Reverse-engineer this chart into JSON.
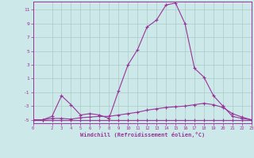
{
  "xlabel": "Windchill (Refroidissement éolien,°C)",
  "background_color": "#cce8e8",
  "grid_color": "#aacccc",
  "line_color": "#993399",
  "xlim": [
    0,
    23
  ],
  "ylim": [
    -5.5,
    12.2
  ],
  "yticks": [
    -5,
    -3,
    -1,
    1,
    3,
    5,
    7,
    9,
    11
  ],
  "xticks": [
    0,
    2,
    3,
    4,
    5,
    6,
    7,
    8,
    9,
    10,
    11,
    12,
    13,
    14,
    15,
    16,
    17,
    18,
    19,
    20,
    21,
    22,
    23
  ],
  "series1_x": [
    0,
    1,
    2,
    3,
    4,
    5,
    6,
    7,
    8,
    9,
    10,
    11,
    12,
    13,
    14,
    15,
    16,
    17,
    18,
    19,
    20,
    21,
    22,
    23
  ],
  "series1_y": [
    -5,
    -5,
    -5,
    -5,
    -5,
    -5,
    -5,
    -5,
    -5,
    -5,
    -5,
    -5,
    -5,
    -5,
    -5,
    -5,
    -5,
    -5,
    -5,
    -5,
    -5,
    -5,
    -5,
    -5
  ],
  "series2_x": [
    0,
    1,
    2,
    3,
    4,
    5,
    6,
    7,
    8,
    9,
    10,
    11,
    12,
    13,
    14,
    15,
    16,
    17,
    18,
    19,
    20,
    21,
    22,
    23
  ],
  "series2_y": [
    -5,
    -5,
    -4.8,
    -4.8,
    -4.9,
    -4.7,
    -4.6,
    -4.5,
    -4.5,
    -4.3,
    -4.1,
    -3.9,
    -3.6,
    -3.4,
    -3.2,
    -3.1,
    -3.0,
    -2.8,
    -2.6,
    -2.8,
    -3.2,
    -4.1,
    -4.6,
    -5.0
  ],
  "series3_x": [
    0,
    1,
    2,
    3,
    4,
    5,
    6,
    7,
    8,
    9,
    10,
    11,
    12,
    13,
    14,
    15,
    16,
    17,
    18,
    19,
    20,
    21,
    22,
    23
  ],
  "series3_y": [
    -5,
    -5,
    -4.5,
    -1.5,
    -2.8,
    -4.3,
    -4.1,
    -4.3,
    -4.8,
    -0.8,
    3.0,
    5.2,
    8.5,
    9.5,
    11.7,
    12.0,
    9.0,
    2.5,
    1.2,
    -1.5,
    -3.0,
    -4.5,
    -4.8,
    -5.0
  ]
}
